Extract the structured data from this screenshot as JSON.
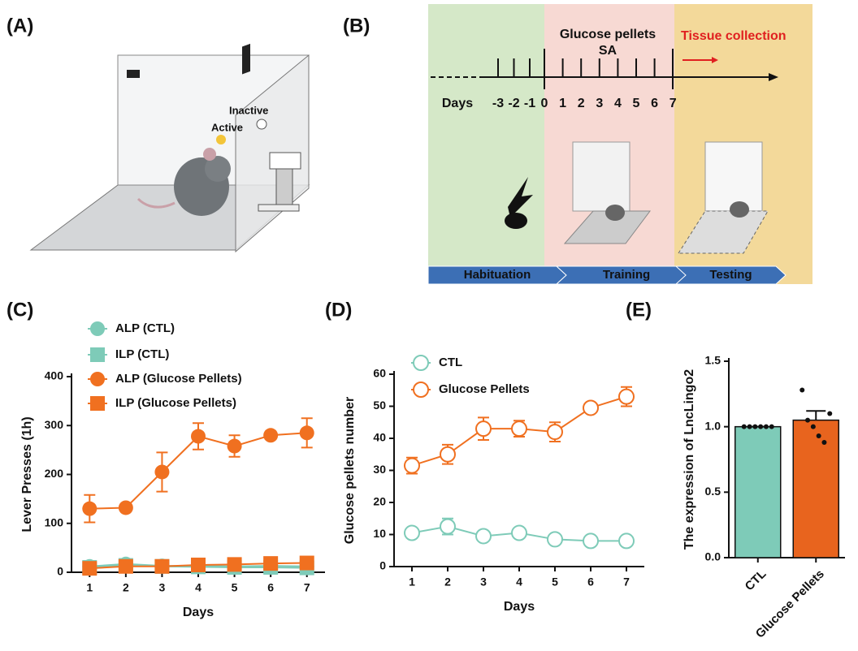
{
  "panel_labels": [
    "(A)",
    "(B)",
    "(C)",
    "(D)",
    "(E)"
  ],
  "panel_a": {
    "labels": [
      "Inactive",
      "Active"
    ]
  },
  "panel_b": {
    "top_label": "Glucose pellets",
    "sub_label": "SA",
    "collection": "Tissue collection",
    "days_label": "Days",
    "day_ticks": [
      "-3",
      "-2",
      "-1",
      "0",
      "1",
      "2",
      "3",
      "4",
      "5",
      "6",
      "7"
    ],
    "phases": [
      "Habituation",
      "Training",
      "Testing"
    ]
  },
  "chart_data": [
    {
      "type": "line",
      "x": [
        1,
        2,
        3,
        4,
        5,
        6,
        7
      ],
      "xlim": [
        0.5,
        7.5
      ],
      "xticks": [
        1,
        2,
        3,
        4,
        5,
        6,
        7
      ],
      "ylim": [
        0,
        400
      ],
      "yticks": [
        0,
        100,
        200,
        300,
        400
      ],
      "xlabel": "Days",
      "ylabel": "Lever Presses (1h)",
      "series": [
        {
          "name": "ALP (CTL)",
          "color": "#7ecbb8",
          "marker": "circle",
          "values": [
            12,
            17,
            13,
            13,
            12,
            13,
            12
          ]
        },
        {
          "name": "ILP (CTL)",
          "color": "#7ecbb8",
          "marker": "square",
          "values": [
            10,
            14,
            12,
            11,
            10,
            10,
            9
          ]
        },
        {
          "name": "ALP (Glucose Pellets)",
          "color": "#f07020",
          "marker": "circle",
          "values": [
            130,
            132,
            205,
            278,
            258,
            280,
            285
          ],
          "errors": [
            28,
            0,
            40,
            27,
            22,
            0,
            30
          ]
        },
        {
          "name": "ILP (Glucose Pellets)",
          "color": "#f07020",
          "marker": "square",
          "values": [
            8,
            12,
            12,
            15,
            16,
            18,
            19
          ]
        }
      ]
    },
    {
      "type": "line",
      "x": [
        1,
        2,
        3,
        4,
        5,
        6,
        7
      ],
      "xlim": [
        0.5,
        7.5
      ],
      "xticks": [
        1,
        2,
        3,
        4,
        5,
        6,
        7
      ],
      "ylim": [
        0,
        60
      ],
      "yticks": [
        0,
        10,
        20,
        30,
        40,
        50,
        60
      ],
      "xlabel": "Days",
      "ylabel": "Glucose pellets number",
      "series": [
        {
          "name": "CTL",
          "color": "#7ecbb8",
          "marker": "open-circle",
          "values": [
            10.5,
            12.5,
            9.5,
            10.5,
            8.5,
            8,
            8
          ],
          "errors": [
            1,
            2.5,
            1,
            1,
            1,
            0.5,
            0.5
          ]
        },
        {
          "name": "Glucose Pellets",
          "color": "#f07020",
          "marker": "open-circle",
          "values": [
            31.5,
            35,
            43,
            43,
            42,
            49.5,
            53
          ],
          "errors": [
            2.5,
            3,
            3.5,
            2.5,
            3,
            1,
            3
          ]
        }
      ]
    },
    {
      "type": "bar",
      "categories": [
        "CTL",
        "Glucose Pellets"
      ],
      "values": [
        1.0,
        1.05
      ],
      "errors": [
        0,
        0.07
      ],
      "colors": [
        "#7ecbb8",
        "#e8641e"
      ],
      "points": [
        [
          1,
          1,
          1,
          1,
          1,
          1
        ],
        [
          1.28,
          1.05,
          1.0,
          0.93,
          0.88,
          1.1
        ]
      ],
      "ylim": [
        0,
        1.5
      ],
      "yticks": [
        {
          "value": 0,
          "label": "0.0"
        },
        0.5,
        {
          "value": 1,
          "label": "1.0"
        },
        1.5
      ],
      "ylabel": "The expression of LncLingo2"
    }
  ]
}
